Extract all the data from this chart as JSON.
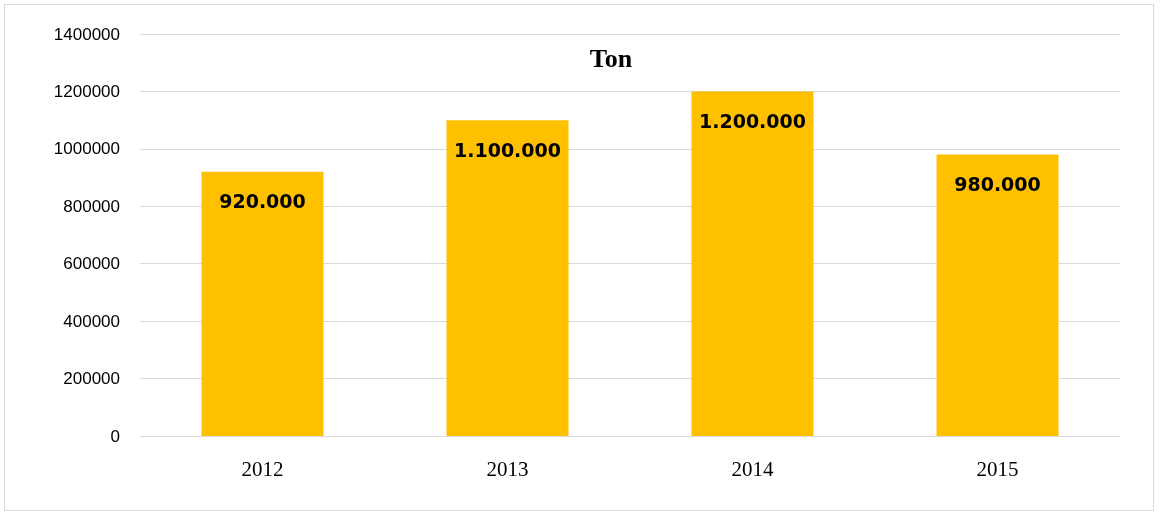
{
  "chart_data": {
    "type": "bar",
    "title": "Ton",
    "categories": [
      "2012",
      "2013",
      "2014",
      "2015"
    ],
    "values": [
      920000,
      1100000,
      1200000,
      980000
    ],
    "value_labels": [
      "920.000",
      "1.100.000",
      "1.200.000",
      "980.000"
    ],
    "color": "#ffc000",
    "ylim": [
      0,
      1400000
    ],
    "yticks": [
      0,
      200000,
      400000,
      600000,
      800000,
      1000000,
      1200000,
      1400000
    ],
    "grid": "y"
  }
}
